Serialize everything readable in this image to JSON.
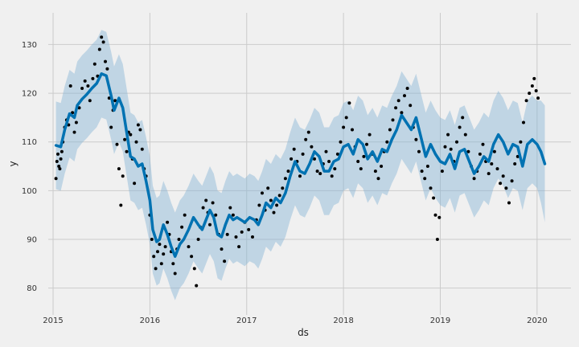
{
  "chart_data": {
    "type": "line",
    "title": "",
    "xlabel": "ds",
    "ylabel": "y",
    "x_ticks": [
      "2015",
      "2016",
      "2017",
      "2018",
      "2019",
      "2020"
    ],
    "y_ticks": [
      80,
      90,
      100,
      110,
      120,
      130
    ],
    "xlim": [
      2014.95,
      2020.35
    ],
    "ylim": [
      74.5,
      136.5
    ],
    "grid": true,
    "series": [
      {
        "role": "forecast",
        "color": "#0072b2",
        "x": [
          2015.03,
          2015.08,
          2015.12,
          2015.17,
          2015.22,
          2015.25,
          2015.3,
          2015.35,
          2015.4,
          2015.45,
          2015.5,
          2015.55,
          2015.6,
          2015.63,
          2015.68,
          2015.72,
          2015.76,
          2015.8,
          2015.84,
          2015.88,
          2015.92,
          2015.96,
          2016.0,
          2016.03,
          2016.07,
          2016.1,
          2016.14,
          2016.18,
          2016.22,
          2016.26,
          2016.31,
          2016.35,
          2016.4,
          2016.45,
          2016.5,
          2016.54,
          2016.58,
          2016.62,
          2016.66,
          2016.7,
          2016.74,
          2016.78,
          2016.82,
          2016.86,
          2016.9,
          2016.94,
          2016.98,
          2017.03,
          2017.08,
          2017.12,
          2017.16,
          2017.2,
          2017.25,
          2017.3,
          2017.35,
          2017.4,
          2017.45,
          2017.5,
          2017.55,
          2017.6,
          2017.65,
          2017.7,
          2017.75,
          2017.8,
          2017.85,
          2017.9,
          2017.95,
          2018.0,
          2018.05,
          2018.1,
          2018.15,
          2018.2,
          2018.25,
          2018.3,
          2018.35,
          2018.4,
          2018.45,
          2018.5,
          2018.55,
          2018.6,
          2018.65,
          2018.7,
          2018.75,
          2018.8,
          2018.85,
          2018.9,
          2018.95,
          2019.0,
          2019.05,
          2019.1,
          2019.15,
          2019.2,
          2019.25,
          2019.3,
          2019.35,
          2019.4,
          2019.45,
          2019.5,
          2019.55,
          2019.6,
          2019.65,
          2019.7,
          2019.75,
          2019.8,
          2019.85,
          2019.9,
          2019.95,
          2020.0,
          2020.04,
          2020.08
        ],
        "y": [
          109.3,
          109.0,
          112.5,
          115.8,
          115.0,
          117.5,
          118.8,
          119.8,
          121.0,
          122.0,
          124.0,
          123.6,
          119.5,
          116.5,
          119.0,
          117.0,
          112.0,
          107.0,
          106.5,
          105.0,
          105.5,
          102.0,
          98.0,
          92.0,
          89.5,
          90.0,
          93.0,
          91.0,
          88.5,
          86.5,
          89.0,
          90.0,
          92.0,
          94.5,
          93.0,
          92.0,
          94.0,
          96.0,
          94.5,
          91.0,
          90.5,
          93.0,
          95.0,
          94.0,
          94.5,
          94.0,
          93.5,
          94.5,
          94.0,
          93.0,
          95.0,
          97.5,
          96.5,
          98.5,
          97.5,
          99.5,
          103.0,
          106.0,
          104.0,
          103.5,
          105.5,
          108.0,
          107.0,
          104.0,
          104.0,
          106.0,
          106.5,
          109.0,
          109.5,
          107.5,
          110.5,
          109.5,
          106.5,
          108.0,
          106.0,
          108.5,
          108.0,
          110.5,
          112.5,
          115.5,
          114.0,
          112.5,
          115.0,
          111.0,
          107.0,
          109.5,
          107.5,
          106.0,
          105.5,
          107.5,
          104.5,
          108.0,
          108.5,
          106.0,
          103.5,
          105.0,
          107.0,
          106.0,
          109.5,
          111.5,
          110.0,
          107.5,
          109.5,
          109.0,
          105.0,
          109.5,
          110.5,
          109.5,
          108.0,
          105.5
        ]
      }
    ],
    "band_lower_offset": [
      9.0,
      9.0,
      9.0,
      9.0,
      9.0,
      9.0,
      9.0,
      9.0,
      9.0,
      9.0,
      9.0,
      9.0,
      9.0,
      9.0,
      9.0,
      9.0,
      9.0,
      9.0,
      9.0,
      9.0,
      9.0,
      9.0,
      9.0,
      9.0,
      9.0,
      9.0,
      9.0,
      9.0,
      9.0,
      9.0,
      9.0,
      9.0,
      9.0,
      9.0,
      9.0,
      9.0,
      9.0,
      9.0,
      9.0,
      9.0,
      9.0,
      9.0,
      9.0,
      9.0,
      9.0,
      9.0,
      9.0,
      9.0,
      9.0,
      9.0,
      9.0,
      9.0,
      9.0,
      9.0,
      9.0,
      9.0,
      9.0,
      9.0,
      9.0,
      9.0,
      9.0,
      9.0,
      9.0,
      9.0,
      9.0,
      9.0,
      9.0,
      9.0,
      9.0,
      9.0,
      9.0,
      9.0,
      9.0,
      9.0,
      9.0,
      9.0,
      9.0,
      9.0,
      9.0,
      9.0,
      9.0,
      9.0,
      9.0,
      9.0,
      9.0,
      9.0,
      9.0,
      9.0,
      9.0,
      9.0,
      9.0,
      9.0,
      9.0,
      9.0,
      9.0,
      9.0,
      9.0,
      9.0,
      9.0,
      9.0,
      9.0,
      9.0,
      9.0,
      9.0,
      9.0,
      9.0,
      9.0,
      9.0,
      10.5,
      12.0
    ],
    "band_upper_offset": [
      9.0,
      9.0,
      9.0,
      9.0,
      9.0,
      9.0,
      9.0,
      9.0,
      9.0,
      9.0,
      9.0,
      9.0,
      9.0,
      9.0,
      9.0,
      9.0,
      9.0,
      9.0,
      9.0,
      9.0,
      9.0,
      9.0,
      9.0,
      9.0,
      9.0,
      9.0,
      9.0,
      9.0,
      9.0,
      9.0,
      9.0,
      9.0,
      9.0,
      9.0,
      9.0,
      9.0,
      9.0,
      9.0,
      9.0,
      9.0,
      9.0,
      9.0,
      9.0,
      9.0,
      9.0,
      9.0,
      9.0,
      9.0,
      9.0,
      9.0,
      9.0,
      9.0,
      9.0,
      9.0,
      9.0,
      9.0,
      9.0,
      9.0,
      9.0,
      9.0,
      9.0,
      9.0,
      9.0,
      9.0,
      9.0,
      9.0,
      9.0,
      9.0,
      9.0,
      9.0,
      9.0,
      9.0,
      9.0,
      9.0,
      9.0,
      9.0,
      9.0,
      9.0,
      9.0,
      9.0,
      9.0,
      9.0,
      9.0,
      9.0,
      9.0,
      9.0,
      9.0,
      9.0,
      9.0,
      9.0,
      9.0,
      9.0,
      9.0,
      9.0,
      9.0,
      9.0,
      9.0,
      9.0,
      9.0,
      9.0,
      9.0,
      9.0,
      9.0,
      9.0,
      9.0,
      9.0,
      9.0,
      9.0,
      10.5,
      12.0
    ],
    "band_color": "#7fb0d4",
    "points_color": "#000000",
    "points": [
      [
        2015.03,
        102.5
      ],
      [
        2015.04,
        106.0
      ],
      [
        2015.05,
        107.5
      ],
      [
        2015.06,
        105.0
      ],
      [
        2015.07,
        104.5
      ],
      [
        2015.08,
        106.5
      ],
      [
        2015.09,
        108.0
      ],
      [
        2015.1,
        110.0
      ],
      [
        2015.12,
        113.0
      ],
      [
        2015.14,
        114.5
      ],
      [
        2015.16,
        113.5
      ],
      [
        2015.18,
        121.5
      ],
      [
        2015.2,
        116.0
      ],
      [
        2015.22,
        112.0
      ],
      [
        2015.24,
        114.0
      ],
      [
        2015.27,
        117.0
      ],
      [
        2015.3,
        121.0
      ],
      [
        2015.33,
        122.5
      ],
      [
        2015.36,
        121.5
      ],
      [
        2015.38,
        118.5
      ],
      [
        2015.41,
        123.0
      ],
      [
        2015.43,
        126.0
      ],
      [
        2015.46,
        123.5
      ],
      [
        2015.48,
        129.0
      ],
      [
        2015.5,
        131.5
      ],
      [
        2015.52,
        130.5
      ],
      [
        2015.54,
        126.5
      ],
      [
        2015.56,
        125.0
      ],
      [
        2015.58,
        119.0
      ],
      [
        2015.6,
        113.0
      ],
      [
        2015.62,
        116.5
      ],
      [
        2015.64,
        118.5
      ],
      [
        2015.66,
        109.5
      ],
      [
        2015.68,
        104.5
      ],
      [
        2015.7,
        97.0
      ],
      [
        2015.72,
        103.0
      ],
      [
        2015.74,
        110.5
      ],
      [
        2015.76,
        108.0
      ],
      [
        2015.78,
        112.0
      ],
      [
        2015.8,
        111.5
      ],
      [
        2015.82,
        106.5
      ],
      [
        2015.84,
        101.5
      ],
      [
        2015.86,
        110.0
      ],
      [
        2015.88,
        113.5
      ],
      [
        2015.9,
        112.5
      ],
      [
        2015.92,
        108.5
      ],
      [
        2015.94,
        104.5
      ],
      [
        2015.96,
        103.0
      ],
      [
        2016.0,
        95.0
      ],
      [
        2016.02,
        90.0
      ],
      [
        2016.04,
        86.5
      ],
      [
        2016.06,
        84.0
      ],
      [
        2016.08,
        87.5
      ],
      [
        2016.1,
        89.0
      ],
      [
        2016.12,
        85.0
      ],
      [
        2016.14,
        87.0
      ],
      [
        2016.16,
        88.5
      ],
      [
        2016.18,
        93.5
      ],
      [
        2016.2,
        91.0
      ],
      [
        2016.22,
        87.5
      ],
      [
        2016.24,
        85.0
      ],
      [
        2016.26,
        83.0
      ],
      [
        2016.28,
        88.0
      ],
      [
        2016.3,
        90.0
      ],
      [
        2016.33,
        92.5
      ],
      [
        2016.36,
        95.0
      ],
      [
        2016.4,
        88.5
      ],
      [
        2016.43,
        86.5
      ],
      [
        2016.46,
        84.0
      ],
      [
        2016.48,
        80.5
      ],
      [
        2016.5,
        90.0
      ],
      [
        2016.52,
        92.5
      ],
      [
        2016.55,
        96.5
      ],
      [
        2016.58,
        98.0
      ],
      [
        2016.6,
        95.5
      ],
      [
        2016.62,
        93.0
      ],
      [
        2016.65,
        97.5
      ],
      [
        2016.68,
        95.0
      ],
      [
        2016.71,
        91.0
      ],
      [
        2016.74,
        88.0
      ],
      [
        2016.77,
        85.5
      ],
      [
        2016.8,
        91.0
      ],
      [
        2016.83,
        96.5
      ],
      [
        2016.86,
        95.0
      ],
      [
        2016.89,
        90.5
      ],
      [
        2016.92,
        88.5
      ],
      [
        2016.95,
        91.5
      ],
      [
        2016.98,
        93.5
      ],
      [
        2017.02,
        92.0
      ],
      [
        2017.06,
        90.5
      ],
      [
        2017.1,
        94.0
      ],
      [
        2017.13,
        97.0
      ],
      [
        2017.16,
        99.5
      ],
      [
        2017.19,
        96.0
      ],
      [
        2017.22,
        100.5
      ],
      [
        2017.25,
        98.0
      ],
      [
        2017.28,
        95.5
      ],
      [
        2017.31,
        97.0
      ],
      [
        2017.34,
        99.0
      ],
      [
        2017.37,
        100.5
      ],
      [
        2017.4,
        102.5
      ],
      [
        2017.43,
        104.0
      ],
      [
        2017.46,
        106.5
      ],
      [
        2017.49,
        108.5
      ],
      [
        2017.52,
        106.0
      ],
      [
        2017.55,
        103.0
      ],
      [
        2017.58,
        107.5
      ],
      [
        2017.61,
        110.5
      ],
      [
        2017.64,
        112.0
      ],
      [
        2017.67,
        109.0
      ],
      [
        2017.7,
        106.5
      ],
      [
        2017.73,
        104.0
      ],
      [
        2017.76,
        103.5
      ],
      [
        2017.79,
        105.5
      ],
      [
        2017.82,
        108.0
      ],
      [
        2017.85,
        106.0
      ],
      [
        2017.88,
        103.0
      ],
      [
        2017.91,
        104.5
      ],
      [
        2017.94,
        107.5
      ],
      [
        2017.97,
        110.0
      ],
      [
        2018.0,
        113.0
      ],
      [
        2018.03,
        115.0
      ],
      [
        2018.06,
        118.0
      ],
      [
        2018.09,
        112.5
      ],
      [
        2018.12,
        109.0
      ],
      [
        2018.15,
        106.0
      ],
      [
        2018.18,
        104.5
      ],
      [
        2018.21,
        107.0
      ],
      [
        2018.24,
        109.5
      ],
      [
        2018.27,
        111.5
      ],
      [
        2018.3,
        107.5
      ],
      [
        2018.33,
        104.0
      ],
      [
        2018.36,
        102.5
      ],
      [
        2018.39,
        105.0
      ],
      [
        2018.42,
        108.0
      ],
      [
        2018.45,
        110.0
      ],
      [
        2018.48,
        112.5
      ],
      [
        2018.51,
        114.5
      ],
      [
        2018.54,
        117.0
      ],
      [
        2018.57,
        118.5
      ],
      [
        2018.6,
        116.0
      ],
      [
        2018.63,
        119.5
      ],
      [
        2018.66,
        121.0
      ],
      [
        2018.69,
        117.5
      ],
      [
        2018.72,
        113.0
      ],
      [
        2018.75,
        110.5
      ],
      [
        2018.78,
        108.0
      ],
      [
        2018.81,
        104.0
      ],
      [
        2018.84,
        102.5
      ],
      [
        2018.87,
        105.0
      ],
      [
        2018.9,
        100.5
      ],
      [
        2018.93,
        98.5
      ],
      [
        2018.95,
        95.0
      ],
      [
        2018.97,
        90.0
      ],
      [
        2018.99,
        94.5
      ],
      [
        2019.02,
        104.0
      ],
      [
        2019.05,
        109.0
      ],
      [
        2019.08,
        111.5
      ],
      [
        2019.11,
        108.5
      ],
      [
        2019.14,
        106.0
      ],
      [
        2019.17,
        110.0
      ],
      [
        2019.2,
        113.0
      ],
      [
        2019.23,
        115.0
      ],
      [
        2019.26,
        111.5
      ],
      [
        2019.29,
        108.0
      ],
      [
        2019.32,
        105.0
      ],
      [
        2019.35,
        102.5
      ],
      [
        2019.38,
        104.0
      ],
      [
        2019.41,
        107.5
      ],
      [
        2019.44,
        109.5
      ],
      [
        2019.47,
        106.0
      ],
      [
        2019.5,
        103.5
      ],
      [
        2019.53,
        105.5
      ],
      [
        2019.56,
        108.0
      ],
      [
        2019.59,
        104.5
      ],
      [
        2019.62,
        101.5
      ],
      [
        2019.65,
        103.0
      ],
      [
        2019.68,
        100.5
      ],
      [
        2019.71,
        97.5
      ],
      [
        2019.74,
        102.0
      ],
      [
        2019.77,
        105.5
      ],
      [
        2019.8,
        107.0
      ],
      [
        2019.83,
        110.0
      ],
      [
        2019.86,
        114.0
      ],
      [
        2019.89,
        118.5
      ],
      [
        2019.92,
        120.0
      ],
      [
        2019.95,
        121.5
      ],
      [
        2019.97,
        123.0
      ],
      [
        2019.99,
        120.5
      ],
      [
        2020.01,
        119.0
      ]
    ]
  }
}
